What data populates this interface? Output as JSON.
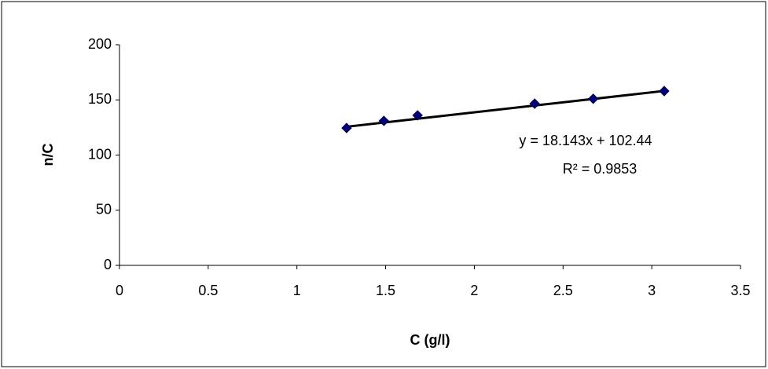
{
  "chart_data": {
    "type": "scatter",
    "x_label": "C (g/l)",
    "y_label": "n/C",
    "series": [
      {
        "color": "#000080",
        "x": [
          1.28,
          1.49,
          1.68,
          2.34,
          2.67,
          3.07
        ],
        "values": [
          124.5,
          131,
          136,
          146.6,
          151,
          158
        ]
      }
    ],
    "trendline": {
      "equation": "y = 18.143x + 102.44",
      "r_squared": "R² = 0.9853",
      "slope": 18.143,
      "intercept": 102.44,
      "color": "#000000"
    },
    "xlim": [
      0,
      3.5
    ],
    "xticks": [
      0,
      0.5,
      1,
      1.5,
      2,
      2.5,
      3,
      3.5
    ],
    "ylim": [
      0,
      200
    ],
    "yticks": [
      0,
      50,
      100,
      150,
      200
    ],
    "grid": false
  }
}
